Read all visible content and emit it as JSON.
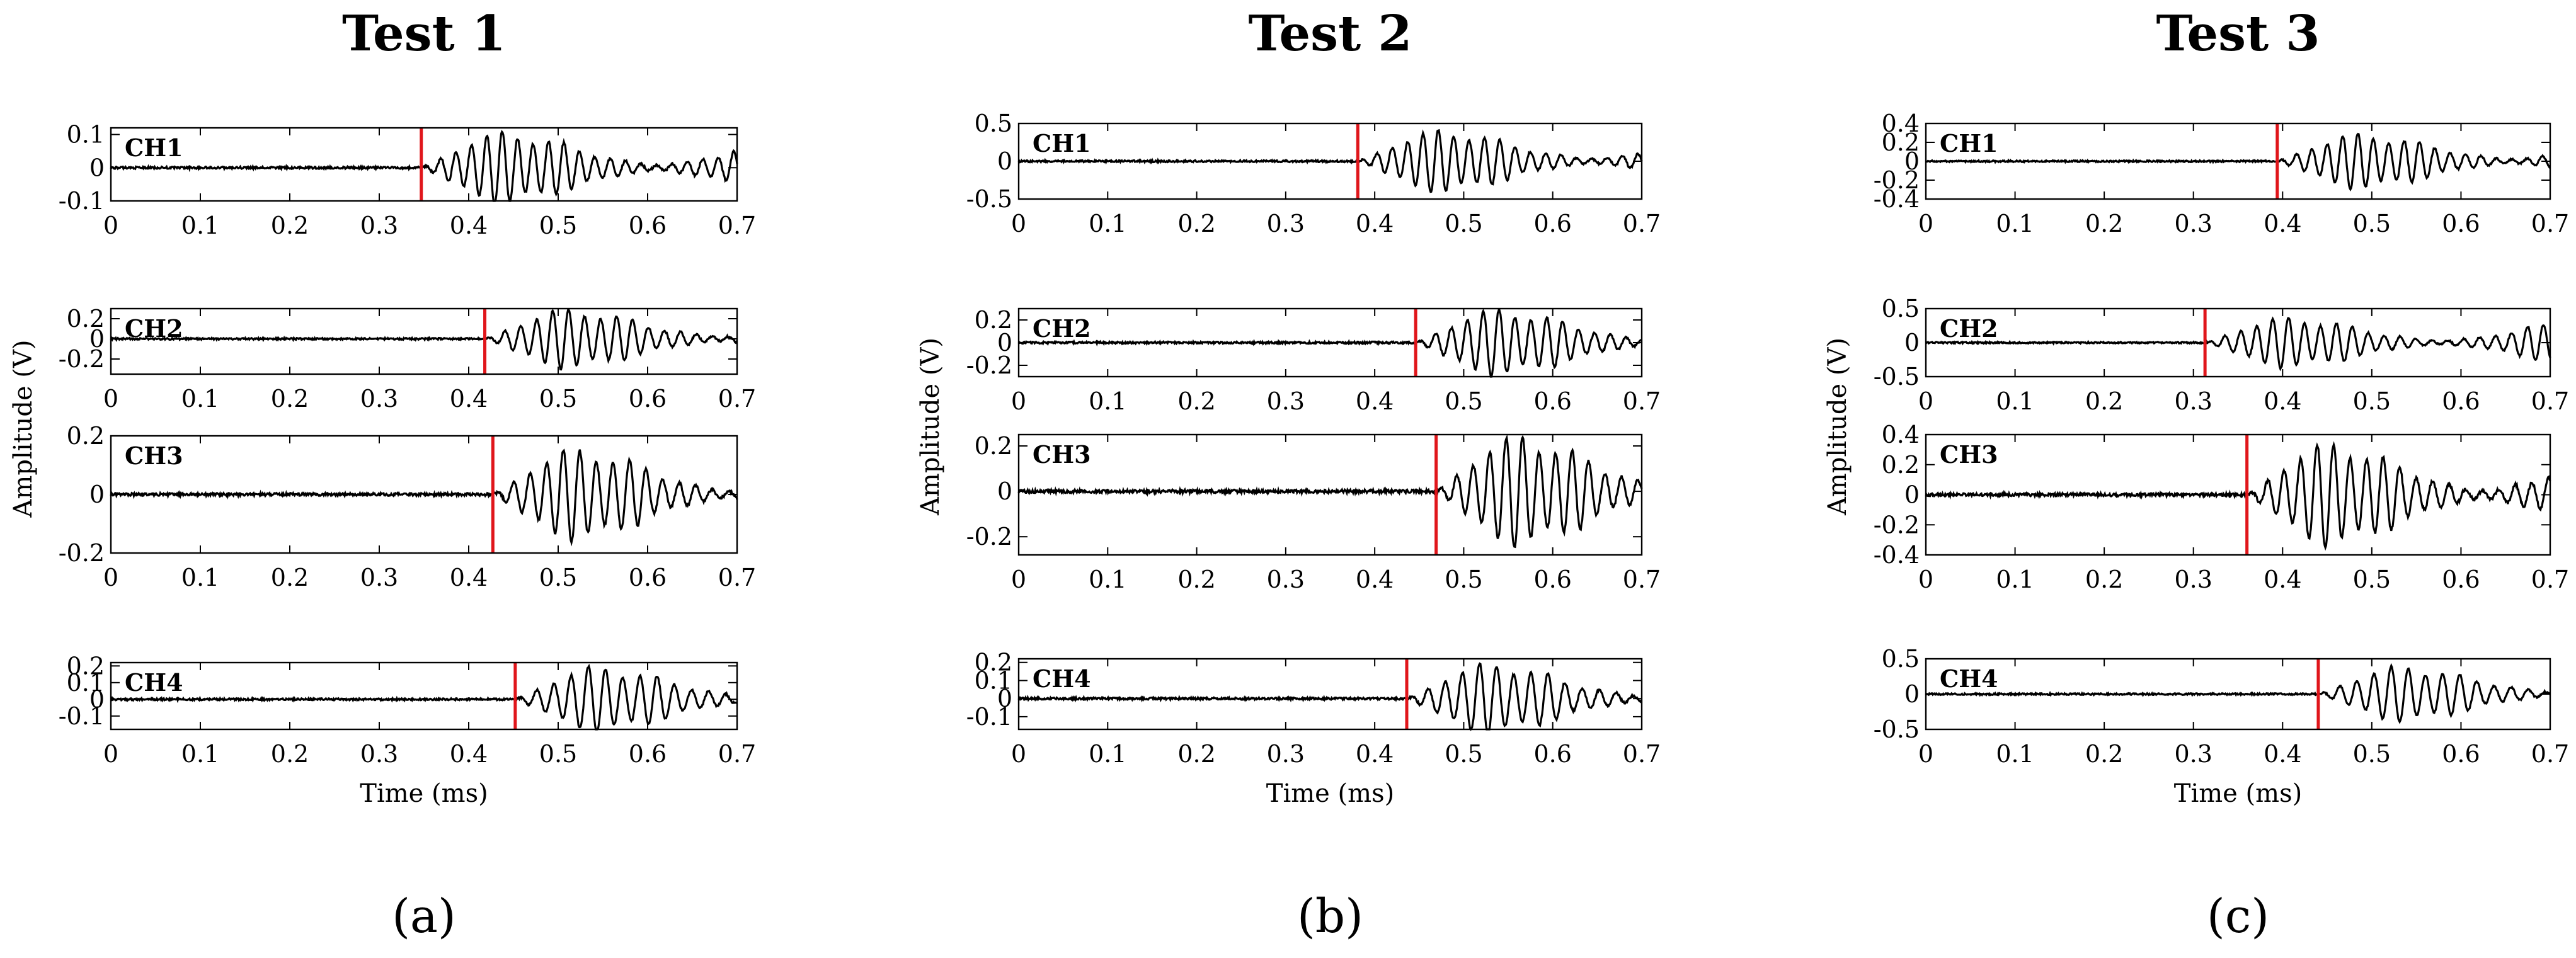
{
  "chart_data": [
    {
      "type": "line",
      "title": "Test 1",
      "panel_label": "(a)",
      "xlabel": "Time (ms)",
      "ylabel": "Amplitude (V)",
      "xlim": [
        0,
        0.7
      ],
      "xticks": [
        "0",
        "0.1",
        "0.2",
        "0.3",
        "0.4",
        "0.5",
        "0.6",
        "0.7"
      ],
      "grid": false,
      "line_color": "#000000",
      "marker_color": "#e0161b",
      "channels": [
        {
          "name": "CH1",
          "ylim": [
            -0.1,
            0.12
          ],
          "yticks": [
            "0.1",
            "0",
            "-0.1"
          ],
          "yvals": [
            0.1,
            0,
            -0.1
          ],
          "onset": 0.347,
          "amp": 0.11
        },
        {
          "name": "CH2",
          "ylim": [
            -0.35,
            0.3
          ],
          "yticks": [
            "0.2",
            "0",
            "-0.2"
          ],
          "yvals": [
            0.2,
            0,
            -0.2
          ],
          "onset": 0.418,
          "amp": 0.3
        },
        {
          "name": "CH3",
          "ylim": [
            -0.2,
            0.2
          ],
          "yticks": [
            "0.2",
            "0",
            "-0.2"
          ],
          "yvals": [
            0.2,
            0,
            -0.2
          ],
          "onset": 0.427,
          "amp": 0.16
        },
        {
          "name": "CH4",
          "ylim": [
            -0.18,
            0.22
          ],
          "yticks": [
            "0.2",
            "0.1",
            "0",
            "-0.1"
          ],
          "yvals": [
            0.2,
            0.1,
            0,
            -0.1
          ],
          "onset": 0.452,
          "amp": 0.2
        }
      ]
    },
    {
      "type": "line",
      "title": "Test 2",
      "panel_label": "(b)",
      "xlabel": "Time (ms)",
      "ylabel": "Amplitude (V)",
      "xlim": [
        0,
        0.7
      ],
      "xticks": [
        "0",
        "0.1",
        "0.2",
        "0.3",
        "0.4",
        "0.5",
        "0.6",
        "0.7"
      ],
      "grid": false,
      "line_color": "#000000",
      "marker_color": "#e0161b",
      "channels": [
        {
          "name": "CH1",
          "ylim": [
            -0.5,
            0.5
          ],
          "yticks": [
            "0.5",
            "0",
            "-0.5"
          ],
          "yvals": [
            0.5,
            0,
            -0.5
          ],
          "onset": 0.381,
          "amp": 0.42
        },
        {
          "name": "CH2",
          "ylim": [
            -0.3,
            0.3
          ],
          "yticks": [
            "0.2",
            "0",
            "-0.2"
          ],
          "yvals": [
            0.2,
            0,
            -0.2
          ],
          "onset": 0.446,
          "amp": 0.3
        },
        {
          "name": "CH3",
          "ylim": [
            -0.28,
            0.25
          ],
          "yticks": [
            "0.2",
            "0",
            "-0.2"
          ],
          "yvals": [
            0.2,
            0,
            -0.2
          ],
          "onset": 0.469,
          "amp": 0.25
        },
        {
          "name": "CH4",
          "ylim": [
            -0.17,
            0.22
          ],
          "yticks": [
            "0.2",
            "0.1",
            "0",
            "-0.1"
          ],
          "yvals": [
            0.2,
            0.1,
            0,
            -0.1
          ],
          "onset": 0.436,
          "amp": 0.2
        }
      ]
    },
    {
      "type": "line",
      "title": "Test 3",
      "panel_label": "(c)",
      "xlabel": "Time (ms)",
      "ylabel": "Amplitude (V)",
      "xlim": [
        0,
        0.7
      ],
      "xticks": [
        "0",
        "0.1",
        "0.2",
        "0.3",
        "0.4",
        "0.5",
        "0.6",
        "0.7"
      ],
      "grid": false,
      "line_color": "#000000",
      "marker_color": "#e0161b",
      "channels": [
        {
          "name": "CH1",
          "ylim": [
            -0.4,
            0.4
          ],
          "yticks": [
            "0.4",
            "0.2",
            "0",
            "-0.2",
            "-0.4"
          ],
          "yvals": [
            0.4,
            0.2,
            0,
            -0.2,
            -0.4
          ],
          "onset": 0.394,
          "amp": 0.3
        },
        {
          "name": "CH2",
          "ylim": [
            -0.5,
            0.5
          ],
          "yticks": [
            "0.5",
            "0",
            "-0.5"
          ],
          "yvals": [
            0.5,
            0,
            -0.5
          ],
          "onset": 0.313,
          "amp": 0.38
        },
        {
          "name": "CH3",
          "ylim": [
            -0.4,
            0.4
          ],
          "yticks": [
            "0.4",
            "0.2",
            "0",
            "-0.2",
            "-0.4"
          ],
          "yvals": [
            0.4,
            0.2,
            0,
            -0.2,
            -0.4
          ],
          "onset": 0.36,
          "amp": 0.35
        },
        {
          "name": "CH4",
          "ylim": [
            -0.5,
            0.5
          ],
          "yticks": [
            "0.5",
            "0",
            "-0.5"
          ],
          "yvals": [
            0.5,
            0,
            -0.5
          ],
          "onset": 0.44,
          "amp": 0.4
        }
      ]
    }
  ]
}
